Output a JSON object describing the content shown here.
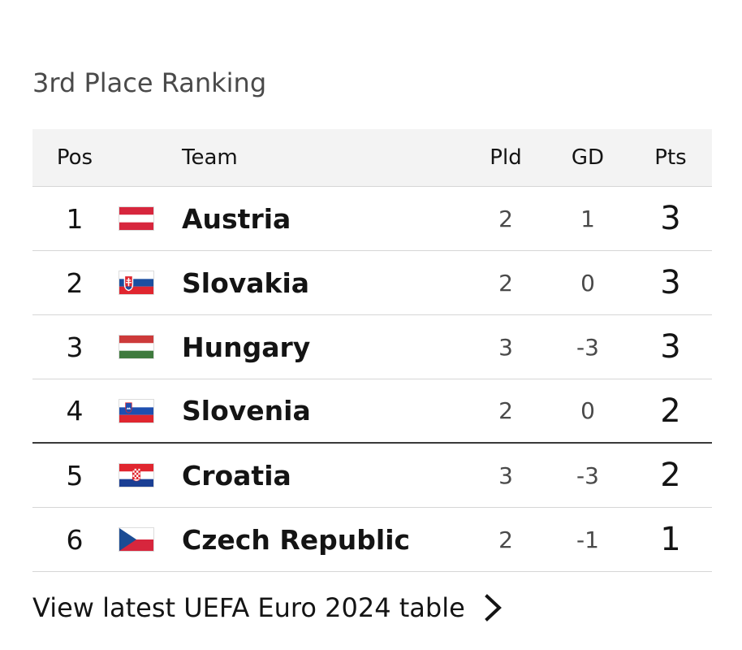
{
  "title": "3rd Place Ranking",
  "headers": {
    "pos": "Pos",
    "team": "Team",
    "pld": "Pld",
    "gd": "GD",
    "pts": "Pts"
  },
  "rows": [
    {
      "pos": "1",
      "team": "Austria",
      "pld": "2",
      "gd": "1",
      "pts": "3",
      "flag": "austria-flag-icon"
    },
    {
      "pos": "2",
      "team": "Slovakia",
      "pld": "2",
      "gd": "0",
      "pts": "3",
      "flag": "slovakia-flag-icon"
    },
    {
      "pos": "3",
      "team": "Hungary",
      "pld": "3",
      "gd": "-3",
      "pts": "3",
      "flag": "hungary-flag-icon"
    },
    {
      "pos": "4",
      "team": "Slovenia",
      "pld": "2",
      "gd": "0",
      "pts": "2",
      "flag": "slovenia-flag-icon"
    },
    {
      "pos": "5",
      "team": "Croatia",
      "pld": "3",
      "gd": "-3",
      "pts": "2",
      "flag": "croatia-flag-icon"
    },
    {
      "pos": "6",
      "team": "Czech Republic",
      "pld": "2",
      "gd": "-1",
      "pts": "1",
      "flag": "czech-republic-flag-icon"
    }
  ],
  "footer": {
    "link_label": "View latest UEFA Euro 2024 table",
    "chevron_icon": "chevron-right-icon"
  },
  "colors": {
    "header_bg": "#f3f3f3",
    "divider": "#d6d6d6",
    "cutoff_line": "#3a3a3a",
    "text": "#141414",
    "muted": "#4a4a4a"
  }
}
